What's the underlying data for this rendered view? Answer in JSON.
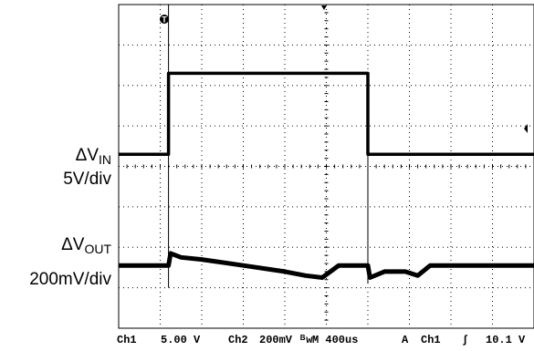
{
  "chart_data": {
    "type": "line",
    "title": "",
    "xlabel": "",
    "ylabel": "",
    "grid": true,
    "divisions": {
      "x": 10,
      "y": 8
    },
    "xlim": [
      0,
      10
    ],
    "ylim": [
      0,
      8
    ],
    "trigger_marker": "T",
    "series": [
      {
        "channel": "Ch1",
        "x": [
          0,
          1.2,
          1.2,
          6.0,
          6.0,
          10
        ],
        "y": [
          4.3,
          4.3,
          6.3,
          6.3,
          4.3,
          4.3
        ]
      },
      {
        "channel": "Ch2",
        "x": [
          0,
          1.2,
          1.25,
          1.5,
          2.0,
          3.0,
          4.0,
          4.5,
          4.9,
          5.3,
          6.0,
          6.05,
          6.4,
          6.9,
          7.2,
          7.5,
          8.5,
          10
        ],
        "y": [
          1.55,
          1.55,
          1.85,
          1.75,
          1.7,
          1.55,
          1.4,
          1.3,
          1.25,
          1.55,
          1.55,
          1.25,
          1.4,
          1.4,
          1.3,
          1.55,
          1.55,
          1.55
        ]
      }
    ],
    "side_labels": [
      {
        "name": "ΔV",
        "sub": "IN",
        "scale": "5V/div"
      },
      {
        "name": "ΔV",
        "sub": "OUT",
        "scale": "200mV/div"
      }
    ]
  },
  "statusbar": {
    "ch1": "Ch1",
    "ch1_scale": "5.00 V",
    "ch2": "Ch2",
    "ch2_scale": "200mV",
    "bw": "ᴮw",
    "timebase": "M 400us",
    "trig_mode": "A",
    "trig_source": "Ch1",
    "trig_slope": "∫",
    "trig_level": "10.1 V"
  }
}
